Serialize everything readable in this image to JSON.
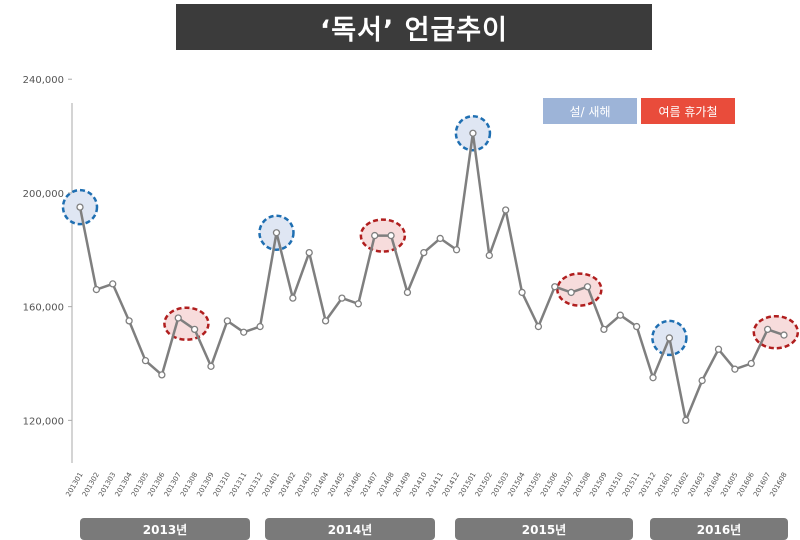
{
  "title": "‘독서’ 언급추이",
  "legend": {
    "newyear": {
      "label": "설/ 새해",
      "color": "#9db4d8"
    },
    "summer": {
      "label": "여름 휴가철",
      "color": "#e94c3b"
    }
  },
  "years": [
    "2013년",
    "2014년",
    "2015년",
    "2016년"
  ],
  "chart_data": {
    "type": "line",
    "title": "‘독서’ 언급추이",
    "ylim": [
      105000,
      245000
    ],
    "yticks": [
      {
        "value": 120000,
        "label": "120,000"
      },
      {
        "value": 160000,
        "label": "160,000"
      },
      {
        "value": 200000,
        "label": "200,000"
      },
      {
        "value": 240000,
        "label": "240,000"
      }
    ],
    "grid": false,
    "categories": [
      "201301",
      "201302",
      "201303",
      "201304",
      "201305",
      "201306",
      "201307",
      "201308",
      "201309",
      "201310",
      "201311",
      "201312",
      "201401",
      "201402",
      "201403",
      "201404",
      "201405",
      "201406",
      "201407",
      "201408",
      "201409",
      "201410",
      "201411",
      "201412",
      "201501",
      "201502",
      "201503",
      "201504",
      "201505",
      "201506",
      "201507",
      "201508",
      "201509",
      "201510",
      "201511",
      "201512",
      "201601",
      "201602",
      "201603",
      "201604",
      "201605",
      "201606",
      "201607",
      "201608"
    ],
    "series": [
      {
        "color": "#7f7f7f",
        "values": [
          195000,
          166000,
          168000,
          155000,
          141000,
          136000,
          156000,
          152000,
          139000,
          155000,
          151000,
          153000,
          186000,
          163000,
          179000,
          155000,
          163000,
          161000,
          185000,
          185000,
          165000,
          179000,
          184000,
          180000,
          221000,
          178000,
          194000,
          165000,
          153000,
          167000,
          165000,
          167000,
          152000,
          157000,
          153000,
          135000,
          149000,
          120000,
          134000,
          145000,
          138000,
          140000,
          152000,
          150000
        ]
      }
    ],
    "annotations": [
      {
        "type": "newyear",
        "index": 0
      },
      {
        "type": "newyear",
        "index": 12
      },
      {
        "type": "newyear",
        "index": 24
      },
      {
        "type": "newyear",
        "index": 36
      },
      {
        "type": "summer",
        "from": 6,
        "to": 7
      },
      {
        "type": "summer",
        "from": 18,
        "to": 19
      },
      {
        "type": "summer",
        "from": 30,
        "to": 31
      },
      {
        "type": "summer",
        "from": 42,
        "to": 43
      }
    ]
  }
}
